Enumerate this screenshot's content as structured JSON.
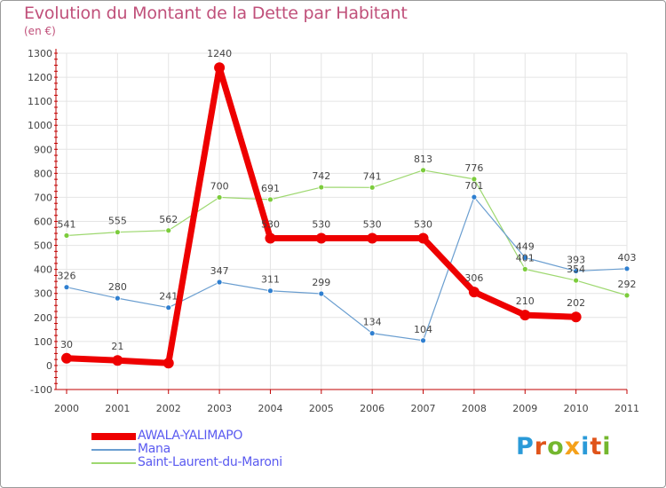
{
  "header": {
    "title": "Evolution du Montant de la Dette par Habitant",
    "unit": "(en €)"
  },
  "logo": {
    "text": "Proxiti",
    "letter_colors": [
      "#2a9ad8",
      "#e0541a",
      "#74b72e",
      "#f5a11a",
      "#2a9ad8",
      "#e0541a",
      "#74b72e"
    ]
  },
  "colors": {
    "title": "#c0507a",
    "axis": "#c00000",
    "grid": "#e4e4e4",
    "label_text": "#444444",
    "legend_text": "#5a5af0"
  },
  "chart_data": {
    "type": "line",
    "title": "Evolution du Montant de la Dette par Habitant",
    "ylabel": "(en €)",
    "xlabel": "",
    "x": [
      "2000",
      "2001",
      "2002",
      "2003",
      "2004",
      "2005",
      "2006",
      "2007",
      "2008",
      "2009",
      "2010",
      "2011"
    ],
    "ylim": [
      -100,
      1300
    ],
    "yticks": [
      -100,
      0,
      100,
      200,
      300,
      400,
      500,
      600,
      700,
      800,
      900,
      1000,
      1100,
      1200,
      1300
    ],
    "grid": true,
    "legend_position": "bottom-left",
    "series": [
      {
        "name": "AWALA-YALIMAPO",
        "color": "#ee0000",
        "marker_color": "#ee0000",
        "values": [
          30,
          21,
          10,
          1240,
          530,
          530,
          530,
          530,
          306,
          210,
          202,
          null
        ],
        "labels": [
          "30",
          "21",
          "",
          "1240",
          "530",
          "530",
          "530",
          "530",
          "306",
          "210",
          "202",
          ""
        ]
      },
      {
        "name": "Mana",
        "color": "#6a9ed0",
        "marker_color": "#2f7fd0",
        "values": [
          326,
          280,
          241,
          347,
          311,
          299,
          134,
          104,
          701,
          449,
          393,
          403
        ],
        "labels": [
          "326",
          "280",
          "241",
          "347",
          "311",
          "299",
          "134",
          "104",
          "701",
          "449",
          "393",
          "403"
        ]
      },
      {
        "name": "Saint-Laurent-du-Maroni",
        "color": "#9ed870",
        "marker_color": "#7ccc3c",
        "values": [
          541,
          555,
          562,
          700,
          691,
          742,
          741,
          813,
          776,
          401,
          354,
          292
        ],
        "labels": [
          "541",
          "555",
          "562",
          "700",
          "691",
          "742",
          "741",
          "813",
          "776",
          "401",
          "354",
          "292"
        ]
      }
    ]
  }
}
